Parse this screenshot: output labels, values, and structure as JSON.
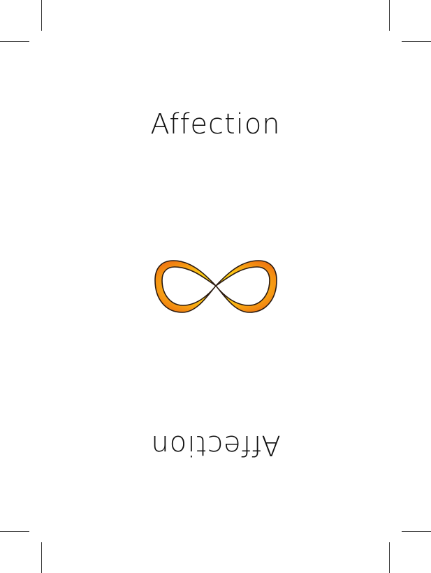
{
  "card": {
    "word_top": "Affection",
    "word_bottom": "Affection",
    "symbol_icon": "infinity-icon",
    "colors": {
      "symbol_gradient_outer": "#f07a12",
      "symbol_gradient_inner": "#ffe31a",
      "symbol_outline": "#2a1a10",
      "crop_marks": "#3a3a3a"
    }
  }
}
